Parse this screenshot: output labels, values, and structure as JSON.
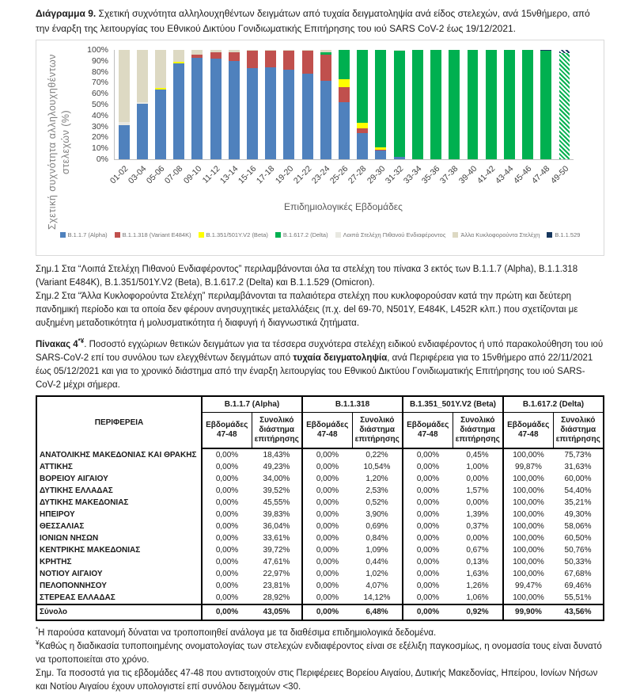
{
  "figure": {
    "label": "Διάγραμμα 9.",
    "text": " Σχετική συχνότητα αλληλουχηθέντων δειγμάτων από τυχαία δειγματοληψία ανά είδος στελεχών, ανά 15νθήμερο, από την έναρξη της λειτουργίας του Εθνικού Δικτύου Γονιδιωματικής Επιτήρησης του ιού SARS CoV-2 έως 19/12/2021."
  },
  "chart_data": {
    "type": "bar",
    "stacked": true,
    "xlabel": "Επιδημιολογικές Εβδομάδες",
    "ylabel": "Σχετική συχνότητα αλληλουχηθέντων στελεχών (%)",
    "ylim": [
      0,
      100
    ],
    "ytick_step": 10,
    "ytick_suffix": "%",
    "grid": false,
    "legend_position": "bottom",
    "categories": [
      "01-02",
      "03-04",
      "05-06",
      "07-08",
      "09-10",
      "11-12",
      "13-14",
      "15-16",
      "17-18",
      "19-20",
      "21-22",
      "23-24",
      "25-26",
      "27-28",
      "29-30",
      "31-32",
      "33-34",
      "35-36",
      "37-38",
      "39-40",
      "41-42",
      "43-44",
      "45-46",
      "47-48",
      "49-50"
    ],
    "series": [
      {
        "name": "B.1.1.7 (Alpha)",
        "color": "#4F81BD",
        "values": [
          31,
          51,
          64,
          88,
          93,
          92,
          90,
          83,
          84,
          82,
          78,
          72,
          52,
          24,
          8,
          2.5,
          0,
          0,
          0,
          0,
          0,
          0,
          0,
          0,
          0
        ]
      },
      {
        "name": "B.1.1.318 (Variant E484K)",
        "color": "#C0504D",
        "values": [
          0,
          0,
          0,
          0,
          3,
          6,
          8,
          16,
          15,
          17,
          21,
          24,
          14,
          4,
          1,
          0,
          0,
          0,
          0,
          0,
          0,
          0,
          0,
          0,
          0
        ]
      },
      {
        "name": "B.1.351/501Y.V2 (Beta)",
        "color": "#FFFF00",
        "values": [
          0,
          0,
          1,
          1,
          0,
          0,
          0,
          0,
          0,
          0,
          0,
          0,
          7,
          5,
          2,
          0,
          0,
          0,
          0,
          0,
          0,
          0,
          0,
          0,
          0
        ]
      },
      {
        "name": "B.1.617.2 (Delta)",
        "color": "#00B050",
        "values": [
          0,
          0,
          0,
          0,
          0,
          0,
          0,
          0,
          0,
          0,
          0,
          2,
          27,
          67,
          89,
          97,
          100,
          100,
          100,
          100,
          100,
          100,
          100,
          99.5,
          97
        ]
      },
      {
        "name": "Λοιπά Στελέχη Πιθανού Ενδιαφέροντος",
        "color": "#E8E8E1",
        "values": [
          3,
          1,
          0,
          0,
          0,
          0,
          0,
          0,
          0,
          0,
          0,
          0,
          0,
          0,
          0,
          0.5,
          0,
          0,
          0,
          0,
          0,
          0,
          0,
          0,
          0
        ]
      },
      {
        "name": "Άλλα Κυκλοφορούντα Στελέχη",
        "color": "#DDD9C3",
        "values": [
          66,
          48,
          35,
          11,
          4,
          2,
          2,
          1,
          1,
          1,
          1,
          2,
          0,
          0,
          0,
          0,
          0,
          0,
          0,
          0,
          0,
          0,
          0,
          0,
          0
        ]
      },
      {
        "name": "B.1.1.529",
        "color": "#17375E",
        "values": [
          0,
          0,
          0,
          0,
          0,
          0,
          0,
          0,
          0,
          0,
          0,
          0,
          0,
          0,
          0,
          0,
          0,
          0,
          0,
          0,
          0,
          0,
          0,
          0.5,
          3
        ]
      }
    ],
    "hatched_categories": [
      "49-50"
    ]
  },
  "notes_after_chart": [
    "Σημ.1 Στα “Λοιπά Στελέχη Πιθανού Ενδιαφέροντος” περιλαμβάνονται όλα τα στελέχη του πίνακα 3 εκτός των B.1.1.7 (Alpha), B.1.1.318 (Variant E484K), B.1.351/501Y.V2 (Beta), B.1.617.2 (Delta) και B.1.1.529 (Omicron).",
    "Σημ.2 Στα “Άλλα Κυκλοφορούντα Στελέχη” περιλαμβάνονται τα παλαιότερα στελέχη που κυκλοφορούσαν κατά την πρώτη και δεύτερη πανδημική περίοδο και τα οποία δεν φέρουν ανησυχητικές μεταλλάξεις (π.χ. del 69-70, N501Y, E484K, L452R κλπ.) που σχετίζονται με αυξημένη μεταδοτικότητα ή μολυσματικότητα ή διαφυγή ή διαγνωστικά ζητήματα."
  ],
  "table": {
    "caption": {
      "label": "Πίνακας 4",
      "sup": "*¥",
      "text_before": ". Ποσοστό εγχώριων θετικών δειγμάτων για τα τέσσερα συχνότερα στελέχη ειδικού ενδιαφέροντος ή υπό παρακολούθηση του ιού SARS-CoV-2 επί του συνόλου των ελεγχθέντων δειγμάτων από ",
      "bold": "τυχαία δειγματοληψία",
      "text_after": ", ανά Περιφέρεια για το 15νθήμερο από 22/11/2021 έως 05/12/2021 και για το χρονικό διάστημα από την έναρξη λειτουργίας του Εθνικού Δικτύου Γονιδιωματικής Επιτήρησης του ιού SARS-CoV-2 μέχρι σήμερα."
    },
    "region_header": "ΠΕΡΙΦΕΡΕΙΑ",
    "col_groups": [
      "B.1.1.7 (Alpha)",
      "B.1.1.318",
      "B.1.351_501Y.V2 (Beta)",
      "B.1.617.2 (Delta)"
    ],
    "sub_headers": [
      "Εβδομάδες 47-48",
      "Συνολικό διάστημα επιτήρησης"
    ],
    "rows": [
      {
        "region": "ΑΝΑΤΟΛΙΚΗΣ ΜΑΚΕΔΟΝΙΑΣ ΚΑΙ ΘΡΑΚΗΣ",
        "values": [
          "0,00%",
          "18,43%",
          "0,00%",
          "0,22%",
          "0,00%",
          "0,45%",
          "100,00%",
          "75,73%"
        ]
      },
      {
        "region": "ΑΤΤΙΚΗΣ",
        "values": [
          "0,00%",
          "49,23%",
          "0,00%",
          "10,54%",
          "0,00%",
          "1,00%",
          "99,87%",
          "31,63%"
        ]
      },
      {
        "region": "ΒΟΡΕΙΟΥ ΑΙΓΑΙΟΥ",
        "values": [
          "0,00%",
          "34,00%",
          "0,00%",
          "1,20%",
          "0,00%",
          "0,00%",
          "100,00%",
          "60,00%"
        ]
      },
      {
        "region": "ΔΥΤΙΚΗΣ ΕΛΛΑΔΑΣ",
        "values": [
          "0,00%",
          "39,52%",
          "0,00%",
          "2,53%",
          "0,00%",
          "1,57%",
          "100,00%",
          "54,40%"
        ]
      },
      {
        "region": "ΔΥΤΙΚΗΣ ΜΑΚΕΔΟΝΙΑΣ",
        "values": [
          "0,00%",
          "45,55%",
          "0,00%",
          "0,52%",
          "0,00%",
          "0,00%",
          "100,00%",
          "35,21%"
        ]
      },
      {
        "region": "ΗΠΕΙΡΟΥ",
        "values": [
          "0,00%",
          "39,83%",
          "0,00%",
          "3,90%",
          "0,00%",
          "1,39%",
          "100,00%",
          "49,30%"
        ]
      },
      {
        "region": "ΘΕΣΣΑΛΙΑΣ",
        "values": [
          "0,00%",
          "36,04%",
          "0,00%",
          "0,69%",
          "0,00%",
          "0,37%",
          "100,00%",
          "58,06%"
        ]
      },
      {
        "region": "ΙΟΝΙΩΝ ΝΗΣΩΝ",
        "values": [
          "0,00%",
          "33,61%",
          "0,00%",
          "0,84%",
          "0,00%",
          "0,00%",
          "100,00%",
          "60,50%"
        ]
      },
      {
        "region": "ΚΕΝΤΡΙΚΗΣ ΜΑΚΕΔΟΝΙΑΣ",
        "values": [
          "0,00%",
          "39,72%",
          "0,00%",
          "1,09%",
          "0,00%",
          "0,67%",
          "100,00%",
          "50,76%"
        ]
      },
      {
        "region": "ΚΡΗΤΗΣ",
        "values": [
          "0,00%",
          "47,61%",
          "0,00%",
          "0,44%",
          "0,00%",
          "0,13%",
          "100,00%",
          "50,33%"
        ]
      },
      {
        "region": "ΝΟΤΙΟΥ ΑΙΓΑΙΟΥ",
        "values": [
          "0,00%",
          "22,97%",
          "0,00%",
          "1,02%",
          "0,00%",
          "1,63%",
          "100,00%",
          "67,68%"
        ]
      },
      {
        "region": "ΠΕΛΟΠΟΝΝΗΣΟΥ",
        "values": [
          "0,00%",
          "23,81%",
          "0,00%",
          "4,07%",
          "0,00%",
          "1,26%",
          "99,47%",
          "69,46%"
        ]
      },
      {
        "region": "ΣΤΕΡΕΑΣ ΕΛΛΑΔΑΣ",
        "values": [
          "0,00%",
          "28,92%",
          "0,00%",
          "14,12%",
          "0,00%",
          "1,06%",
          "100,00%",
          "55,51%"
        ]
      }
    ],
    "total_row": {
      "region": "Σύνολο",
      "values": [
        "0,00%",
        "43,05%",
        "0,00%",
        "6,48%",
        "0,00%",
        "0,92%",
        "99,90%",
        "43,56%"
      ]
    }
  },
  "footnotes": [
    {
      "sup": "*",
      "text": "Η παρούσα κατανομή δύναται να τροποποιηθεί ανάλογα με τα διαθέσιμα επιδημιολογικά δεδομένα."
    },
    {
      "sup": "¥",
      "text": "Καθώς η διαδικασία τυποποιημένης ονοματολογίας των στελεχών ενδιαφέροντος είναι σε εξέλιξη παγκοσμίως, η ονομασία τους είναι δυνατό να τροποποιείται στο χρόνο."
    },
    {
      "sup": "",
      "text": "Σημ. Τα ποσοστά για τις εβδομάδες 47-48 που αντιστοιχούν στις Περιφέρειες Βορείου Αιγαίου, Δυτικής Μακεδονίας, Ηπείρου, Ιονίων Νήσων και Νοτίου Αιγαίου έχουν υπολογιστεί επί συνόλου δειγμάτων <30."
    }
  ]
}
